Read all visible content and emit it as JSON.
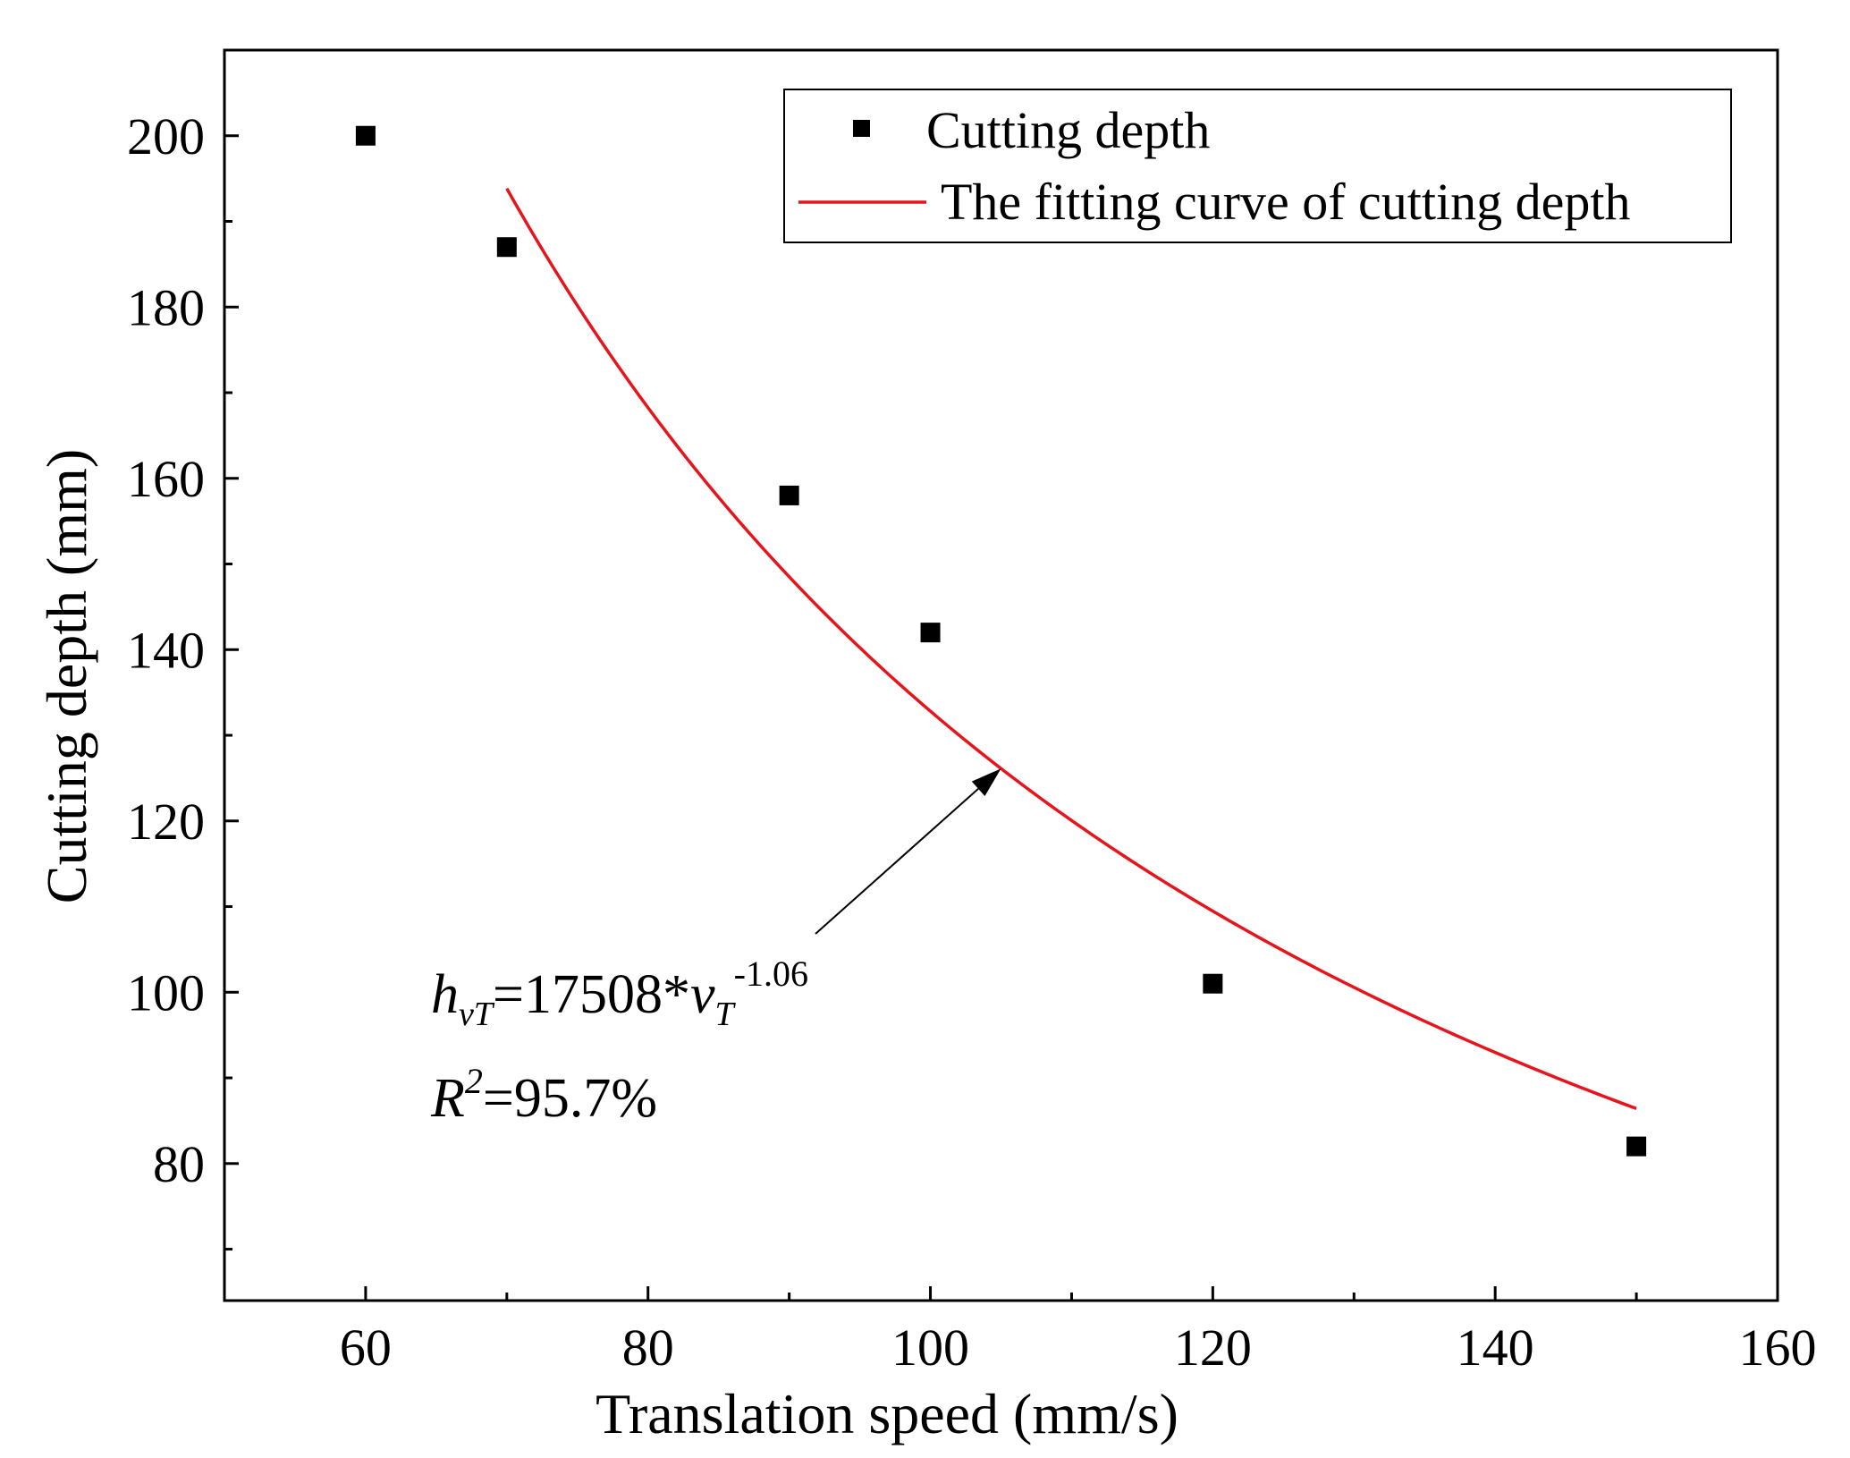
{
  "chart_data": {
    "type": "scatter",
    "xlabel": "Translation speed (mm/s)",
    "ylabel": "Cutting depth (mm)",
    "xlim": [
      50,
      160
    ],
    "ylim": [
      64,
      210
    ],
    "x_ticks": [
      60,
      80,
      100,
      120,
      140,
      160
    ],
    "y_ticks": [
      80,
      100,
      120,
      140,
      160,
      180,
      200
    ],
    "grid": false,
    "series": [
      {
        "name": "Cutting depth",
        "kind": "scatter",
        "marker": "square",
        "color": "#000000",
        "x": [
          60,
          70,
          90,
          100,
          120,
          150
        ],
        "y": [
          200,
          187,
          158,
          142,
          101,
          82
        ]
      },
      {
        "name": "The fitting curve of cutting depth",
        "kind": "line",
        "color": "#e8141b",
        "model": "power",
        "coefficient": 17508,
        "exponent": -1.06,
        "x_range": [
          70,
          150
        ]
      }
    ],
    "legend_position": "top-right",
    "annotation": {
      "h_base": "h",
      "h_sub": "vT",
      "eq_mid": "=17508*",
      "v_base": "v",
      "v_sub": "T",
      "v_sup": "-1.06",
      "r_base": "R",
      "r_sup": "2",
      "r_value": "=95.7%",
      "arrow_target_x": 105
    }
  }
}
